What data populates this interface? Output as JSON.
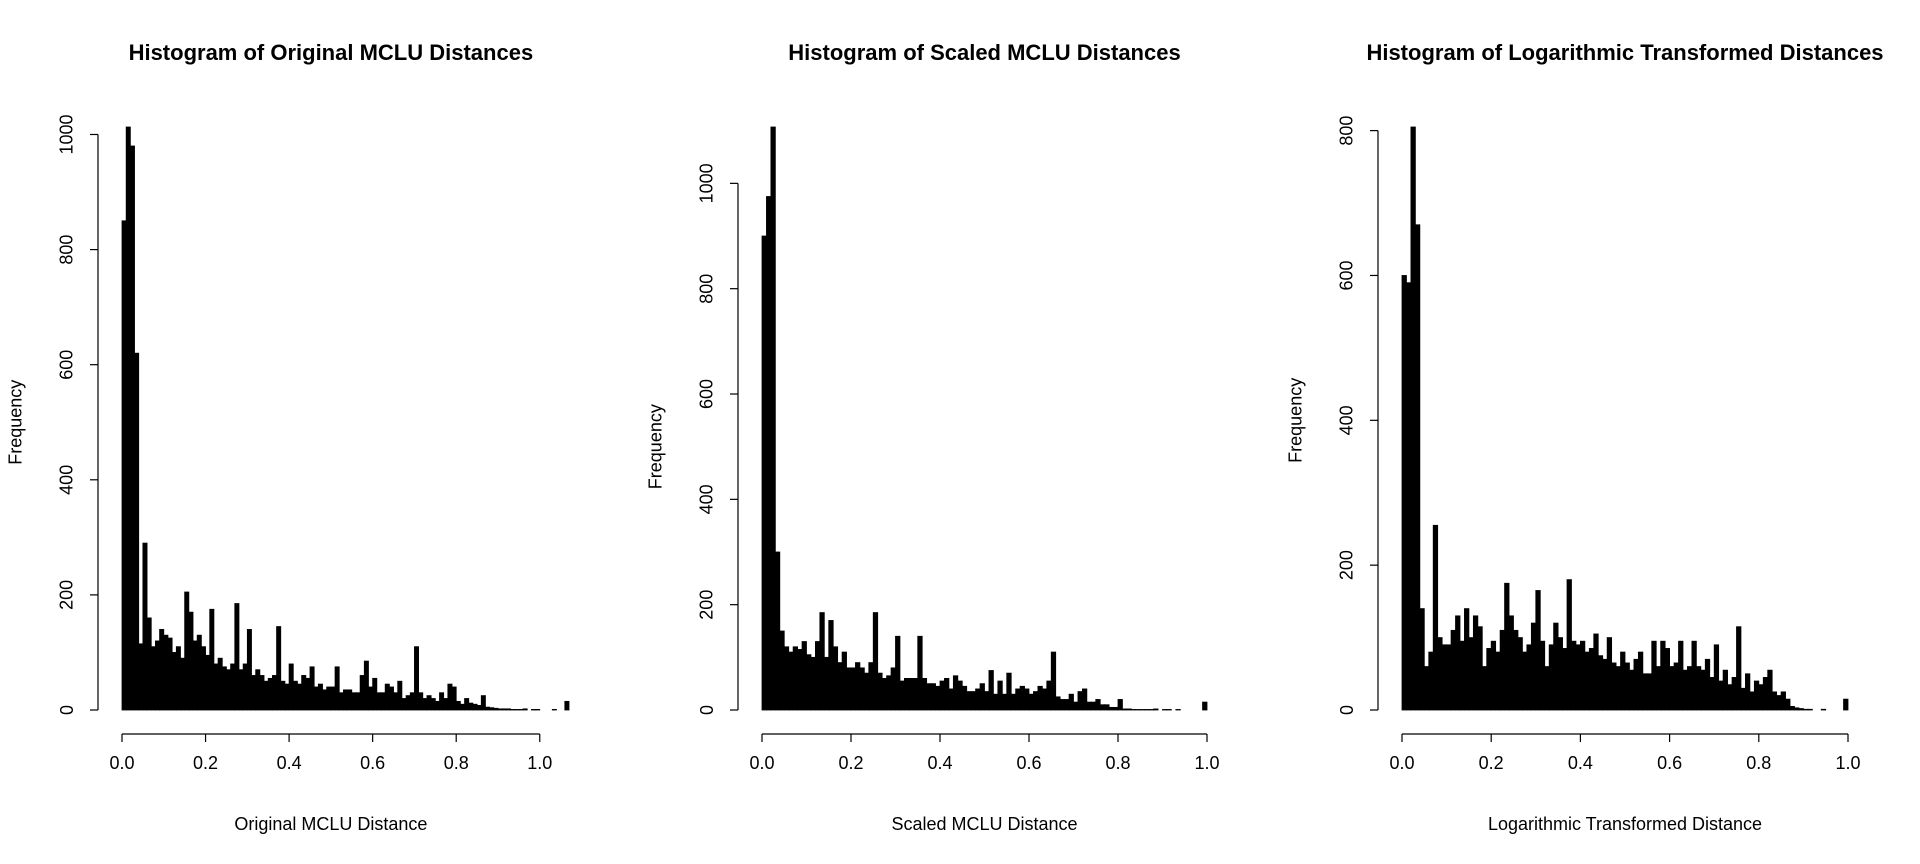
{
  "chart_data": [
    {
      "type": "histogram",
      "title": "Histogram of Original MCLU Distances",
      "x_label": "Original MCLU Distance",
      "y_label": "Frequency",
      "color": "#000000",
      "bins": [
        0,
        0.01,
        0.02,
        0.03,
        0.04,
        0.05,
        0.06,
        0.07,
        0.08,
        0.09,
        0.1,
        0.11,
        0.12,
        0.13,
        0.14,
        0.15,
        0.16,
        0.17,
        0.18,
        0.19,
        0.2,
        0.21,
        0.22,
        0.23,
        0.24,
        0.25,
        0.26,
        0.27,
        0.28,
        0.29,
        0.3,
        0.31,
        0.32,
        0.33,
        0.34,
        0.35,
        0.36,
        0.37,
        0.38,
        0.39,
        0.4,
        0.41,
        0.42,
        0.43,
        0.44,
        0.45,
        0.46,
        0.47,
        0.48,
        0.49,
        0.5,
        0.51,
        0.52,
        0.53,
        0.54,
        0.55,
        0.56,
        0.57,
        0.58,
        0.59,
        0.6,
        0.61,
        0.62,
        0.63,
        0.64,
        0.65,
        0.66,
        0.67,
        0.68,
        0.69,
        0.7,
        0.71,
        0.72,
        0.73,
        0.74,
        0.75,
        0.76,
        0.77,
        0.78,
        0.79,
        0.8,
        0.81,
        0.82,
        0.83,
        0.84,
        0.85,
        0.86,
        0.87,
        0.88,
        0.89,
        0.9,
        0.91,
        0.92,
        0.93,
        0.94,
        0.95,
        0.96,
        0.97,
        0.98,
        0.99,
        1,
        1.01,
        1.02,
        1.03,
        1.04,
        1.05,
        1.06,
        1.07
      ],
      "values": [
        850,
        1013,
        980,
        620,
        115,
        290,
        160,
        110,
        120,
        140,
        130,
        125,
        100,
        110,
        90,
        205,
        170,
        120,
        130,
        110,
        95,
        175,
        80,
        90,
        75,
        70,
        80,
        185,
        70,
        80,
        140,
        60,
        70,
        60,
        50,
        55,
        60,
        145,
        50,
        45,
        80,
        50,
        45,
        60,
        55,
        75,
        40,
        45,
        35,
        40,
        40,
        75,
        30,
        35,
        35,
        30,
        30,
        60,
        85,
        40,
        55,
        30,
        30,
        45,
        40,
        30,
        50,
        20,
        25,
        30,
        110,
        30,
        20,
        25,
        20,
        15,
        30,
        20,
        45,
        40,
        15,
        10,
        20,
        12,
        10,
        8,
        25,
        5,
        4,
        3,
        2,
        2,
        2,
        1,
        1,
        1,
        2,
        0,
        1,
        1,
        0,
        0,
        0,
        1,
        0,
        0,
        15
      ],
      "xlim": [
        0,
        1.07
      ],
      "ylim": [
        0,
        1013
      ],
      "xticks": [
        {
          "value": 0,
          "label": "0.0"
        },
        0.2,
        0.4,
        0.6,
        0.8,
        {
          "value": 1,
          "label": "1.0"
        }
      ],
      "yticks": [
        0,
        200,
        400,
        600,
        800,
        1000
      ]
    },
    {
      "type": "histogram",
      "title": "Histogram of Scaled MCLU Distances",
      "x_label": "Scaled MCLU Distance",
      "y_label": "Frequency",
      "color": "#000000",
      "bins": [
        0,
        0.01,
        0.02,
        0.03,
        0.04,
        0.05,
        0.06,
        0.07,
        0.08,
        0.09,
        0.1,
        0.11,
        0.12,
        0.13,
        0.14,
        0.15,
        0.16,
        0.17,
        0.18,
        0.19,
        0.2,
        0.21,
        0.22,
        0.23,
        0.24,
        0.25,
        0.26,
        0.27,
        0.28,
        0.29,
        0.3,
        0.31,
        0.32,
        0.33,
        0.34,
        0.35,
        0.36,
        0.37,
        0.38,
        0.39,
        0.4,
        0.41,
        0.42,
        0.43,
        0.44,
        0.45,
        0.46,
        0.47,
        0.48,
        0.49,
        0.5,
        0.51,
        0.52,
        0.53,
        0.54,
        0.55,
        0.56,
        0.57,
        0.58,
        0.59,
        0.6,
        0.61,
        0.62,
        0.63,
        0.64,
        0.65,
        0.66,
        0.67,
        0.68,
        0.69,
        0.7,
        0.71,
        0.72,
        0.73,
        0.74,
        0.75,
        0.76,
        0.77,
        0.78,
        0.79,
        0.8,
        0.81,
        0.82,
        0.83,
        0.84,
        0.85,
        0.86,
        0.87,
        0.88,
        0.89,
        0.9,
        0.91,
        0.92,
        0.93,
        0.94,
        0.95,
        0.96,
        0.97,
        0.98,
        0.99,
        1
      ],
      "values": [
        900,
        975,
        1107,
        300,
        150,
        120,
        110,
        120,
        115,
        130,
        105,
        100,
        130,
        185,
        100,
        170,
        120,
        90,
        110,
        80,
        80,
        90,
        80,
        70,
        90,
        185,
        70,
        60,
        65,
        80,
        140,
        55,
        60,
        60,
        60,
        140,
        60,
        50,
        50,
        45,
        55,
        60,
        40,
        65,
        55,
        45,
        35,
        35,
        40,
        50,
        35,
        75,
        30,
        55,
        30,
        70,
        30,
        40,
        45,
        40,
        30,
        35,
        45,
        40,
        55,
        110,
        25,
        20,
        20,
        30,
        15,
        35,
        40,
        15,
        15,
        20,
        10,
        10,
        5,
        5,
        20,
        2,
        2,
        1,
        1,
        1,
        1,
        1,
        2,
        0,
        1,
        1,
        0,
        1,
        0,
        0,
        0,
        0,
        0,
        15
      ],
      "xlim": [
        0,
        1
      ],
      "ylim": [
        0,
        1107
      ],
      "xticks": [
        {
          "value": 0,
          "label": "0.0"
        },
        0.2,
        0.4,
        0.6,
        0.8,
        {
          "value": 1,
          "label": "1.0"
        }
      ],
      "yticks": [
        0,
        200,
        400,
        600,
        800,
        1000
      ]
    },
    {
      "type": "histogram",
      "title": "Histogram of Logarithmic Transformed Distances",
      "x_label": "Logarithmic Transformed Distance",
      "y_label": "Frequency",
      "color": "#000000",
      "bins": [
        0,
        0.01,
        0.02,
        0.03,
        0.04,
        0.05,
        0.06,
        0.07,
        0.08,
        0.09,
        0.1,
        0.11,
        0.12,
        0.13,
        0.14,
        0.15,
        0.16,
        0.17,
        0.18,
        0.19,
        0.2,
        0.21,
        0.22,
        0.23,
        0.24,
        0.25,
        0.26,
        0.27,
        0.28,
        0.29,
        0.3,
        0.31,
        0.32,
        0.33,
        0.34,
        0.35,
        0.36,
        0.37,
        0.38,
        0.39,
        0.4,
        0.41,
        0.42,
        0.43,
        0.44,
        0.45,
        0.46,
        0.47,
        0.48,
        0.49,
        0.5,
        0.51,
        0.52,
        0.53,
        0.54,
        0.55,
        0.56,
        0.57,
        0.58,
        0.59,
        0.6,
        0.61,
        0.62,
        0.63,
        0.64,
        0.65,
        0.66,
        0.67,
        0.68,
        0.69,
        0.7,
        0.71,
        0.72,
        0.73,
        0.74,
        0.75,
        0.76,
        0.77,
        0.78,
        0.79,
        0.8,
        0.81,
        0.82,
        0.83,
        0.84,
        0.85,
        0.86,
        0.87,
        0.88,
        0.89,
        0.9,
        0.91,
        0.92,
        0.93,
        0.94,
        0.95,
        0.96,
        0.97,
        0.98,
        0.99,
        1
      ],
      "values": [
        600,
        590,
        805,
        670,
        140,
        60,
        80,
        255,
        100,
        90,
        90,
        110,
        130,
        95,
        140,
        100,
        130,
        115,
        60,
        85,
        95,
        80,
        110,
        175,
        130,
        110,
        100,
        80,
        90,
        120,
        165,
        95,
        60,
        90,
        120,
        100,
        85,
        180,
        95,
        90,
        95,
        80,
        85,
        105,
        75,
        70,
        100,
        65,
        60,
        80,
        65,
        55,
        70,
        80,
        50,
        50,
        95,
        60,
        95,
        85,
        60,
        65,
        95,
        55,
        60,
        95,
        60,
        55,
        70,
        45,
        90,
        40,
        55,
        35,
        45,
        115,
        30,
        50,
        25,
        40,
        35,
        45,
        55,
        25,
        20,
        25,
        15,
        5,
        3,
        2,
        1,
        1,
        0,
        0,
        1,
        0,
        0,
        0,
        0,
        15
      ],
      "xlim": [
        0,
        1
      ],
      "ylim": [
        0,
        805
      ],
      "xticks": [
        {
          "value": 0,
          "label": "0.0"
        },
        0.2,
        0.4,
        0.6,
        0.8,
        {
          "value": 1,
          "label": "1.0"
        }
      ],
      "yticks": [
        0,
        200,
        400,
        600,
        800
      ]
    }
  ]
}
